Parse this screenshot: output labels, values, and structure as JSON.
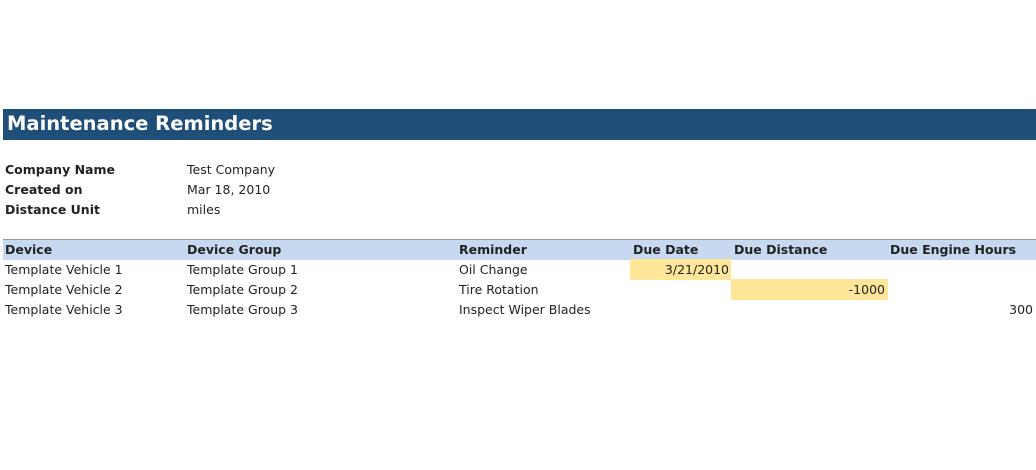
{
  "title": "Maintenance Reminders",
  "info": [
    {
      "label": "Company Name",
      "value": "Test Company"
    },
    {
      "label": "Created on",
      "value": "Mar 18, 2010"
    },
    {
      "label": "Distance Unit",
      "value": "miles"
    }
  ],
  "table": {
    "headers": [
      "Device",
      "Device Group",
      "Reminder",
      "Due Date",
      "Due Distance",
      "Due Engine Hours"
    ],
    "rows": [
      {
        "device": "Template Vehicle 1",
        "group": "Template Group 1",
        "reminder": "Oil Change",
        "due_date": "3/21/2010",
        "due_distance": "",
        "due_engine_hours": ""
      },
      {
        "device": "Template Vehicle 2",
        "group": "Template Group 2",
        "reminder": "Tire Rotation",
        "due_date": "",
        "due_distance": "-1000",
        "due_engine_hours": ""
      },
      {
        "device": "Template Vehicle 3",
        "group": "Template Group 3",
        "reminder": "Inspect Wiper Blades",
        "due_date": "",
        "due_distance": "",
        "due_engine_hours": "300"
      }
    ]
  },
  "colors": {
    "title_bg": "#1f4e79",
    "header_bg": "#c6d9f1",
    "highlight": "#ffe699"
  }
}
